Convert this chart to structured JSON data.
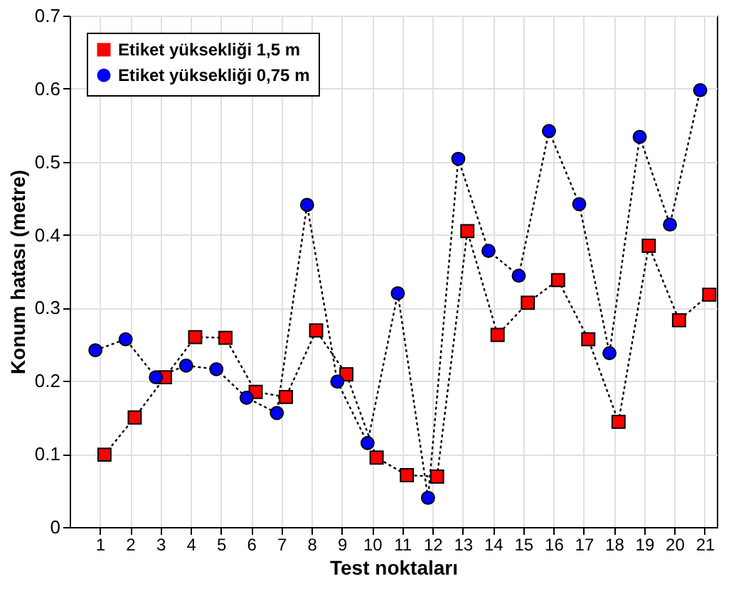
{
  "chart_data": {
    "type": "line",
    "xlabel": "Test noktaları",
    "ylabel": "Konum hatası (metre)",
    "xlim": [
      0,
      21.4
    ],
    "xticks": [
      1,
      2,
      3,
      4,
      5,
      6,
      7,
      8,
      9,
      10,
      11,
      12,
      13,
      14,
      15,
      16,
      17,
      18,
      19,
      20,
      21
    ],
    "ylim": [
      0,
      0.7
    ],
    "yticks": [
      0,
      0.1,
      0.2,
      0.3,
      0.4,
      0.5,
      0.6,
      0.7
    ],
    "grid": true,
    "legend": "top left",
    "line_style": "dotted",
    "series": [
      {
        "name": "Etiket yüksekliği 1,5 m",
        "color": "#ff0000",
        "marker": "square",
        "x": [
          1.15,
          2.15,
          3.15,
          4.15,
          5.15,
          6.15,
          7.15,
          8.15,
          9.15,
          10.15,
          11.15,
          12.15,
          13.15,
          14.15,
          15.15,
          16.15,
          17.15,
          18.15,
          19.15,
          20.15,
          21.15
        ],
        "values": [
          0.099,
          0.15,
          0.205,
          0.26,
          0.259,
          0.185,
          0.178,
          0.269,
          0.209,
          0.095,
          0.071,
          0.069,
          0.405,
          0.263,
          0.307,
          0.338,
          0.257,
          0.144,
          0.385,
          0.283,
          0.318
        ]
      },
      {
        "name": "Etiket yüksekliği 0,75 m",
        "color": "#0000ff",
        "marker": "circle",
        "x": [
          0.85,
          1.85,
          2.85,
          3.85,
          4.85,
          5.85,
          6.85,
          7.85,
          8.85,
          9.85,
          10.85,
          11.85,
          12.85,
          13.85,
          14.85,
          15.85,
          16.85,
          17.85,
          18.85,
          19.85,
          20.85
        ],
        "values": [
          0.242,
          0.257,
          0.205,
          0.221,
          0.216,
          0.177,
          0.156,
          0.441,
          0.199,
          0.115,
          0.32,
          0.04,
          0.504,
          0.378,
          0.344,
          0.542,
          0.442,
          0.238,
          0.534,
          0.414,
          0.598
        ]
      }
    ]
  }
}
